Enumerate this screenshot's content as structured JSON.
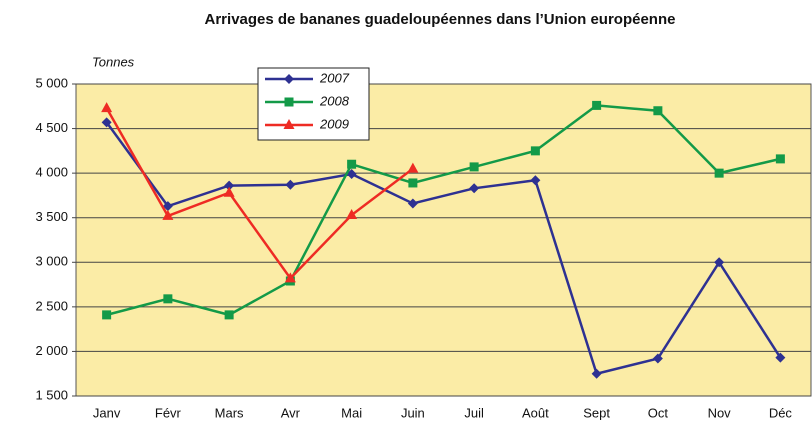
{
  "chart_data": {
    "type": "line",
    "title": "Arrivages de bananes guadeloupéennes dans l’Union européenne",
    "y_label": "Tonnes",
    "categories": [
      "Janv",
      "Févr",
      "Mars",
      "Avr",
      "Mai",
      "Juin",
      "Juil",
      "Août",
      "Sept",
      "Oct",
      "Nov",
      "Déc"
    ],
    "series": [
      {
        "name": "2007",
        "color": "#2e3192",
        "marker": "diamond",
        "values": [
          4570,
          3630,
          3860,
          3870,
          3990,
          3660,
          3830,
          3920,
          1750,
          1920,
          3000,
          1930
        ]
      },
      {
        "name": "2008",
        "color": "#139a48",
        "marker": "square",
        "values": [
          2410,
          2590,
          2410,
          2790,
          4100,
          3890,
          4070,
          4250,
          4760,
          4700,
          4000,
          4160
        ]
      },
      {
        "name": "2009",
        "color": "#ee2b24",
        "marker": "triangle",
        "values": [
          4730,
          3520,
          3780,
          2820,
          3530,
          4050,
          null,
          null,
          null,
          null,
          null,
          null
        ]
      }
    ],
    "ylim": [
      1500,
      5000
    ],
    "yticks": [
      {
        "value": 1500,
        "label": "1 500"
      },
      {
        "value": 2000,
        "label": "2 000"
      },
      {
        "value": 2500,
        "label": "2 500"
      },
      {
        "value": 3000,
        "label": "3 000"
      },
      {
        "value": 3500,
        "label": "3 500"
      },
      {
        "value": 4000,
        "label": "4 000"
      },
      {
        "value": 4500,
        "label": "4 500"
      },
      {
        "value": 5000,
        "label": "5 000"
      }
    ],
    "grid": true,
    "plot_background": "#fbeca6"
  }
}
